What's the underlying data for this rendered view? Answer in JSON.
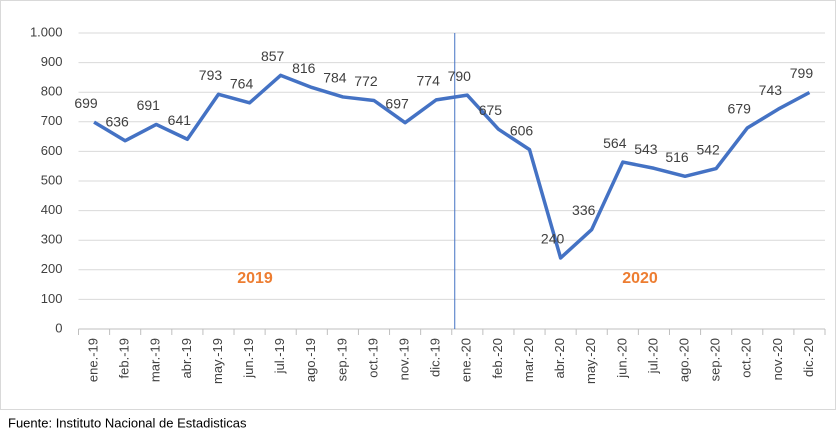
{
  "chart_data": {
    "type": "line",
    "categories": [
      "ene.-19",
      "feb.-19",
      "mar.-19",
      "abr.-19",
      "may.-19",
      "jun.-19",
      "jul.-19",
      "ago.-19",
      "sep.-19",
      "oct.-19",
      "nov.-19",
      "dic.-19",
      "ene.-20",
      "feb.-20",
      "mar.-20",
      "abr.-20",
      "may.-20",
      "jun.-20",
      "jul.-20",
      "ago.-20",
      "sep.-20",
      "oct.-20",
      "nov.-20",
      "dic.-20"
    ],
    "series": [
      {
        "name": null,
        "color": "#4472c4",
        "values": [
          699,
          636,
          691,
          641,
          793,
          764,
          857,
          816,
          784,
          772,
          697,
          774,
          790,
          675,
          606,
          240,
          336,
          564,
          543,
          516,
          542,
          679,
          743,
          799
        ]
      }
    ],
    "ylim": [
      0,
      1000
    ],
    "yticks": [
      0,
      100,
      200,
      300,
      400,
      500,
      600,
      700,
      800,
      900,
      {
        "value": 1000,
        "label": "1.000"
      }
    ],
    "grid": true,
    "annotations": [
      "2019",
      "2020"
    ],
    "source": "Fuente: Instituto Nacional de Estadisticas"
  }
}
